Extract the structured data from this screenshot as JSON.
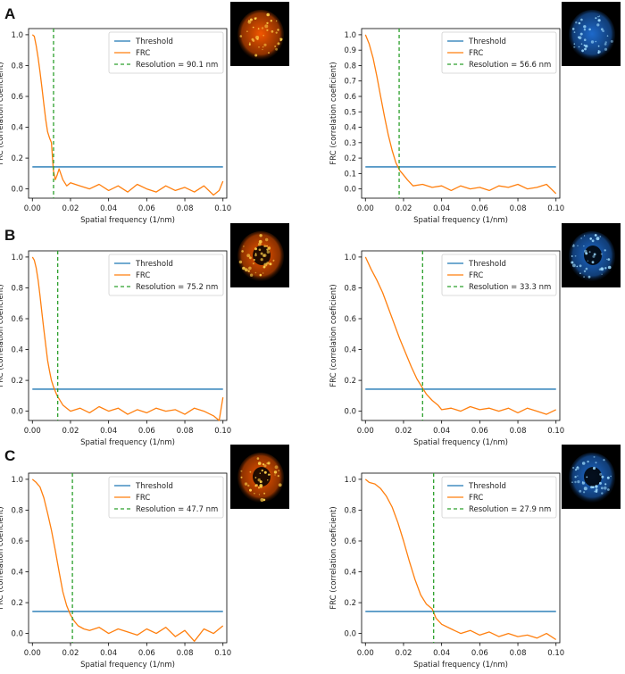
{
  "panels": [
    {
      "letter": "A"
    },
    {
      "letter": "B"
    },
    {
      "letter": "C"
    }
  ],
  "thumbnails": [
    {
      "colormap": "hot",
      "primary": "#ff5a00",
      "highlight": "#ffd24a"
    },
    {
      "colormap": "blue",
      "primary": "#1f6fd6",
      "highlight": "#9fdcff"
    },
    {
      "colormap": "hot",
      "primary": "#ff5a00",
      "highlight": "#ffd24a"
    },
    {
      "colormap": "blue",
      "primary": "#1f6fd6",
      "highlight": "#9fdcff"
    },
    {
      "colormap": "hot",
      "primary": "#ff5a00",
      "highlight": "#ffd24a"
    },
    {
      "colormap": "blue",
      "primary": "#1f6fd6",
      "highlight": "#9fdcff"
    }
  ],
  "colors": {
    "threshold": "#1f77b4",
    "frc": "#ff7f0e",
    "resolution": "#2ca02c"
  },
  "chart_data": [
    {
      "type": "line",
      "xlabel": "Spatial frequency (1/nm)",
      "ylabel": "FRC (correlation coeficient)",
      "xlim": [
        -0.002,
        0.102
      ],
      "ylim": [
        -0.06,
        1.04
      ],
      "xticks": [
        "0.00",
        "0.02",
        "0.04",
        "0.06",
        "0.08",
        "0.10"
      ],
      "yticks": [
        "0.0",
        "0.2",
        "0.4",
        "0.6",
        "0.8",
        "1.0"
      ],
      "legend": [
        "Threshold",
        "FRC",
        "Resolution = 90.1 nm"
      ],
      "legend_position": "top-right",
      "threshold": 0.143,
      "resolution_x": 0.0111,
      "frc": {
        "x": [
          0.0,
          0.001,
          0.002,
          0.003,
          0.004,
          0.005,
          0.006,
          0.007,
          0.008,
          0.009,
          0.01,
          0.011,
          0.012,
          0.013,
          0.014,
          0.016,
          0.018,
          0.02,
          0.025,
          0.03,
          0.035,
          0.04,
          0.045,
          0.05,
          0.055,
          0.06,
          0.065,
          0.07,
          0.075,
          0.08,
          0.085,
          0.09,
          0.095,
          0.098,
          0.1
        ],
        "y": [
          1.0,
          0.99,
          0.93,
          0.85,
          0.76,
          0.66,
          0.55,
          0.45,
          0.37,
          0.33,
          0.3,
          0.12,
          0.06,
          0.09,
          0.13,
          0.06,
          0.02,
          0.04,
          0.02,
          0.0,
          0.03,
          -0.01,
          0.02,
          -0.02,
          0.03,
          0.0,
          -0.02,
          0.02,
          -0.01,
          0.01,
          -0.02,
          0.02,
          -0.04,
          -0.01,
          0.05
        ]
      }
    },
    {
      "type": "line",
      "xlabel": "Spatial frequency (1/nm)",
      "ylabel": "FRC (correlation coeficient)",
      "xlim": [
        -0.002,
        0.102
      ],
      "ylim": [
        -0.06,
        1.04
      ],
      "xticks": [
        "0.00",
        "0.02",
        "0.04",
        "0.06",
        "0.08",
        "0.10"
      ],
      "yticks": [
        "0.0",
        "0.1",
        "0.2",
        "0.3",
        "0.4",
        "0.5",
        "0.6",
        "0.7",
        "0.8",
        "0.9",
        "1.0"
      ],
      "legend": [
        "Threshold",
        "FRC",
        "Resolution = 56.6 nm"
      ],
      "legend_position": "top-right",
      "threshold": 0.143,
      "resolution_x": 0.0177,
      "frc": {
        "x": [
          0.0,
          0.002,
          0.004,
          0.006,
          0.008,
          0.01,
          0.012,
          0.014,
          0.016,
          0.018,
          0.02,
          0.022,
          0.025,
          0.03,
          0.035,
          0.04,
          0.045,
          0.05,
          0.055,
          0.06,
          0.065,
          0.07,
          0.075,
          0.08,
          0.085,
          0.09,
          0.095,
          0.1
        ],
        "y": [
          1.0,
          0.94,
          0.85,
          0.73,
          0.6,
          0.47,
          0.35,
          0.25,
          0.17,
          0.12,
          0.09,
          0.06,
          0.02,
          0.03,
          0.01,
          0.02,
          -0.01,
          0.02,
          0.0,
          0.01,
          -0.01,
          0.02,
          0.01,
          0.03,
          0.0,
          0.01,
          0.03,
          -0.03
        ]
      }
    },
    {
      "type": "line",
      "xlabel": "Spatial frequency (1/nm)",
      "ylabel": "FRC (correlation coeficient)",
      "xlim": [
        -0.002,
        0.102
      ],
      "ylim": [
        -0.06,
        1.04
      ],
      "xticks": [
        "0.00",
        "0.02",
        "0.04",
        "0.06",
        "0.08",
        "0.10"
      ],
      "yticks": [
        "0.0",
        "0.2",
        "0.4",
        "0.6",
        "0.8",
        "1.0"
      ],
      "legend": [
        "Threshold",
        "FRC",
        "Resolution = 75.2 nm"
      ],
      "legend_position": "top-right",
      "threshold": 0.143,
      "resolution_x": 0.0133,
      "frc": {
        "x": [
          0.0,
          0.001,
          0.002,
          0.003,
          0.004,
          0.005,
          0.006,
          0.007,
          0.008,
          0.009,
          0.01,
          0.011,
          0.012,
          0.013,
          0.014,
          0.016,
          0.018,
          0.02,
          0.025,
          0.03,
          0.035,
          0.04,
          0.045,
          0.05,
          0.055,
          0.06,
          0.065,
          0.07,
          0.075,
          0.08,
          0.085,
          0.09,
          0.095,
          0.098,
          0.1
        ],
        "y": [
          1.0,
          0.98,
          0.93,
          0.85,
          0.75,
          0.64,
          0.53,
          0.43,
          0.33,
          0.26,
          0.2,
          0.16,
          0.13,
          0.1,
          0.08,
          0.04,
          0.02,
          0.0,
          0.02,
          -0.01,
          0.03,
          0.0,
          0.02,
          -0.02,
          0.01,
          -0.01,
          0.02,
          0.0,
          0.01,
          -0.02,
          0.02,
          0.0,
          -0.03,
          -0.06,
          0.09
        ]
      }
    },
    {
      "type": "line",
      "xlabel": "Spatial frequency (1/nm)",
      "ylabel": "FRC (correlation coeficient)",
      "xlim": [
        -0.002,
        0.102
      ],
      "ylim": [
        -0.06,
        1.04
      ],
      "xticks": [
        "0.00",
        "0.02",
        "0.04",
        "0.06",
        "0.08",
        "0.10"
      ],
      "yticks": [
        "0.0",
        "0.2",
        "0.4",
        "0.6",
        "0.8",
        "1.0"
      ],
      "legend": [
        "Threshold",
        "FRC",
        "Resolution = 33.3 nm"
      ],
      "legend_position": "top-right",
      "threshold": 0.143,
      "resolution_x": 0.03,
      "frc": {
        "x": [
          0.0,
          0.003,
          0.006,
          0.009,
          0.012,
          0.015,
          0.018,
          0.021,
          0.024,
          0.027,
          0.03,
          0.032,
          0.035,
          0.038,
          0.04,
          0.045,
          0.05,
          0.055,
          0.06,
          0.065,
          0.07,
          0.075,
          0.08,
          0.085,
          0.09,
          0.095,
          0.1
        ],
        "y": [
          1.0,
          0.92,
          0.85,
          0.77,
          0.67,
          0.57,
          0.47,
          0.38,
          0.29,
          0.21,
          0.15,
          0.11,
          0.07,
          0.04,
          0.01,
          0.02,
          0.0,
          0.03,
          0.01,
          0.02,
          0.0,
          0.02,
          -0.01,
          0.02,
          0.0,
          -0.02,
          0.01
        ]
      }
    },
    {
      "type": "line",
      "xlabel": "Spatial frequency (1/nm)",
      "ylabel": "FRC (correlation coeficient)",
      "xlim": [
        -0.002,
        0.102
      ],
      "ylim": [
        -0.06,
        1.04
      ],
      "xticks": [
        "0.00",
        "0.02",
        "0.04",
        "0.06",
        "0.08",
        "0.10"
      ],
      "yticks": [
        "0.0",
        "0.2",
        "0.4",
        "0.6",
        "0.8",
        "1.0"
      ],
      "legend": [
        "Threshold",
        "FRC",
        "Resolution = 47.7 nm"
      ],
      "legend_position": "top-right",
      "threshold": 0.143,
      "resolution_x": 0.021,
      "frc": {
        "x": [
          0.0,
          0.002,
          0.004,
          0.006,
          0.008,
          0.01,
          0.012,
          0.014,
          0.016,
          0.018,
          0.02,
          0.022,
          0.024,
          0.027,
          0.03,
          0.035,
          0.04,
          0.045,
          0.05,
          0.055,
          0.06,
          0.065,
          0.07,
          0.075,
          0.08,
          0.085,
          0.09,
          0.095,
          0.1
        ],
        "y": [
          1.0,
          0.98,
          0.95,
          0.88,
          0.78,
          0.67,
          0.54,
          0.4,
          0.27,
          0.18,
          0.12,
          0.08,
          0.05,
          0.03,
          0.02,
          0.04,
          0.0,
          0.03,
          0.01,
          -0.01,
          0.03,
          0.0,
          0.04,
          -0.02,
          0.02,
          -0.05,
          0.03,
          0.0,
          0.05
        ]
      }
    },
    {
      "type": "line",
      "xlabel": "Spatial frequency (1/nm)",
      "ylabel": "FRC (correlation coeficient)",
      "xlim": [
        -0.002,
        0.102
      ],
      "ylim": [
        -0.06,
        1.04
      ],
      "xticks": [
        "0.00",
        "0.02",
        "0.04",
        "0.06",
        "0.08",
        "0.10"
      ],
      "yticks": [
        "0.0",
        "0.2",
        "0.4",
        "0.6",
        "0.8",
        "1.0"
      ],
      "legend": [
        "Threshold",
        "FRC",
        "Resolution = 27.9 nm"
      ],
      "legend_position": "top-right",
      "threshold": 0.143,
      "resolution_x": 0.0358,
      "frc": {
        "x": [
          0.0,
          0.002,
          0.005,
          0.008,
          0.011,
          0.014,
          0.017,
          0.02,
          0.023,
          0.026,
          0.029,
          0.032,
          0.035,
          0.037,
          0.04,
          0.045,
          0.05,
          0.055,
          0.06,
          0.065,
          0.07,
          0.075,
          0.08,
          0.085,
          0.09,
          0.095,
          0.1
        ],
        "y": [
          1.0,
          0.98,
          0.97,
          0.94,
          0.89,
          0.82,
          0.72,
          0.6,
          0.47,
          0.35,
          0.25,
          0.19,
          0.16,
          0.1,
          0.06,
          0.03,
          0.0,
          0.02,
          -0.01,
          0.01,
          -0.02,
          0.0,
          -0.02,
          -0.01,
          -0.03,
          0.0,
          -0.04
        ]
      }
    }
  ]
}
